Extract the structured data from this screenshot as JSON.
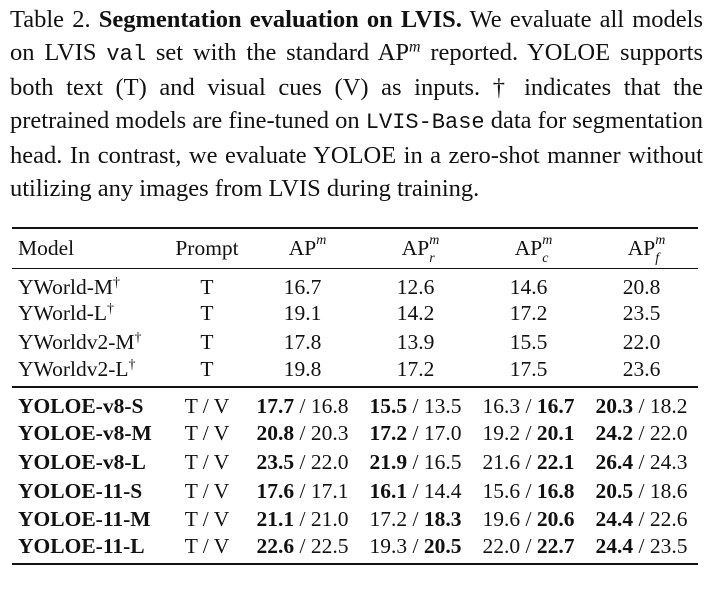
{
  "caption": [
    {
      "text": "Table 2. "
    },
    {
      "text": "Segmentation evaluation on LVIS.",
      "style": "bold"
    },
    {
      "text": " We evaluate all models on LVIS "
    },
    {
      "text": "val",
      "style": "mono"
    },
    {
      "text": " set with the standard AP"
    },
    {
      "text": "m",
      "style": "sup"
    },
    {
      "text": " reported. YOLOE supports both text (T) and visual cues (V) as inputs. † indicates that the pretrained models are fine-tuned on "
    },
    {
      "text": "LVIS-Base",
      "style": "mono"
    },
    {
      "text": " data for segmentation head. In contrast, we evaluate YOLOE in a zero-shot manner without utilizing any images from LVIS during training."
    }
  ],
  "table": {
    "header": [
      {
        "base": "Model"
      },
      {
        "base": "Prompt"
      },
      {
        "base": "AP",
        "sup": "m"
      },
      {
        "base": "AP",
        "sup": "m",
        "sub": "r"
      },
      {
        "base": "AP",
        "sup": "m",
        "sub": "c"
      },
      {
        "base": "AP",
        "sup": "m",
        "sub": "f"
      }
    ],
    "groups": [
      {
        "bold_model": false,
        "rows": [
          {
            "model": {
              "name": "YWorld-M",
              "sup": "†"
            },
            "prompt": "T",
            "cells": [
              "16.7",
              "12.6",
              "14.6",
              "20.8"
            ]
          },
          {
            "model": {
              "name": "YWorld-L",
              "sup": "†"
            },
            "prompt": "T",
            "cells": [
              "19.1",
              "14.2",
              "17.2",
              "23.5"
            ]
          },
          {
            "model": {
              "name": "YWorldv2-M",
              "sup": "†"
            },
            "prompt": "T",
            "cells": [
              "17.8",
              "13.9",
              "15.5",
              "22.0"
            ]
          },
          {
            "model": {
              "name": "YWorldv2-L",
              "sup": "†"
            },
            "prompt": "T",
            "cells": [
              "19.8",
              "17.2",
              "17.5",
              "23.6"
            ]
          }
        ]
      },
      {
        "bold_model": true,
        "rows": [
          {
            "model": {
              "name": "YOLOE-v8-S"
            },
            "prompt": "T / V",
            "cells": [
              [
                {
                  "text": "17.7",
                  "bold": true
                },
                {
                  "text": " / 16.8"
                }
              ],
              [
                {
                  "text": "15.5",
                  "bold": true
                },
                {
                  "text": " / 13.5"
                }
              ],
              [
                {
                  "text": "16.3 / "
                },
                {
                  "text": "16.7",
                  "bold": true
                }
              ],
              [
                {
                  "text": "20.3",
                  "bold": true
                },
                {
                  "text": " / 18.2"
                }
              ]
            ]
          },
          {
            "model": {
              "name": "YOLOE-v8-M"
            },
            "prompt": "T / V",
            "cells": [
              [
                {
                  "text": "20.8",
                  "bold": true
                },
                {
                  "text": " / 20.3"
                }
              ],
              [
                {
                  "text": "17.2",
                  "bold": true
                },
                {
                  "text": " / 17.0"
                }
              ],
              [
                {
                  "text": "19.2 / "
                },
                {
                  "text": "20.1",
                  "bold": true
                }
              ],
              [
                {
                  "text": "24.2",
                  "bold": true
                },
                {
                  "text": " / 22.0"
                }
              ]
            ]
          },
          {
            "model": {
              "name": "YOLOE-v8-L"
            },
            "prompt": "T / V",
            "cells": [
              [
                {
                  "text": "23.5",
                  "bold": true
                },
                {
                  "text": " / 22.0"
                }
              ],
              [
                {
                  "text": "21.9",
                  "bold": true
                },
                {
                  "text": " / 16.5"
                }
              ],
              [
                {
                  "text": "21.6 / "
                },
                {
                  "text": "22.1",
                  "bold": true
                }
              ],
              [
                {
                  "text": "26.4",
                  "bold": true
                },
                {
                  "text": " / 24.3"
                }
              ]
            ]
          },
          {
            "model": {
              "name": "YOLOE-11-S"
            },
            "prompt": "T / V",
            "cells": [
              [
                {
                  "text": "17.6",
                  "bold": true
                },
                {
                  "text": " / 17.1"
                }
              ],
              [
                {
                  "text": "16.1",
                  "bold": true
                },
                {
                  "text": " / 14.4"
                }
              ],
              [
                {
                  "text": "15.6 / "
                },
                {
                  "text": "16.8",
                  "bold": true
                }
              ],
              [
                {
                  "text": "20.5",
                  "bold": true
                },
                {
                  "text": " / 18.6"
                }
              ]
            ]
          },
          {
            "model": {
              "name": "YOLOE-11-M"
            },
            "prompt": "T / V",
            "cells": [
              [
                {
                  "text": "21.1",
                  "bold": true
                },
                {
                  "text": " / 21.0"
                }
              ],
              [
                {
                  "text": "17.2 / "
                },
                {
                  "text": "18.3",
                  "bold": true
                }
              ],
              [
                {
                  "text": "19.6 / "
                },
                {
                  "text": "20.6",
                  "bold": true
                }
              ],
              [
                {
                  "text": "24.4",
                  "bold": true
                },
                {
                  "text": " / 22.6"
                }
              ]
            ]
          },
          {
            "model": {
              "name": "YOLOE-11-L"
            },
            "prompt": "T / V",
            "cells": [
              [
                {
                  "text": "22.6",
                  "bold": true
                },
                {
                  "text": " / 22.5"
                }
              ],
              [
                {
                  "text": "19.3 / "
                },
                {
                  "text": "20.5",
                  "bold": true
                }
              ],
              [
                {
                  "text": "22.0 / "
                },
                {
                  "text": "22.7",
                  "bold": true
                }
              ],
              [
                {
                  "text": "24.4",
                  "bold": true
                },
                {
                  "text": " / 23.5"
                }
              ]
            ]
          }
        ]
      }
    ]
  }
}
